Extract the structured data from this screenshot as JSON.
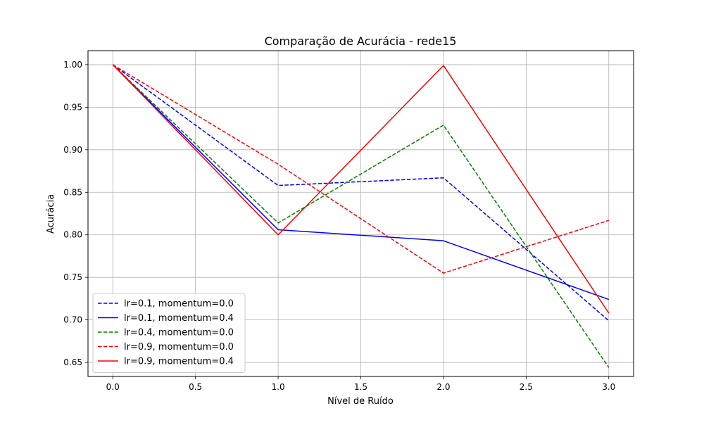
{
  "chart_data": {
    "type": "line",
    "title": "Comparação de Acurácia - rede15",
    "xlabel": "Nível de Ruído",
    "ylabel": "Acurácia",
    "xlim": [
      -0.15,
      3.15
    ],
    "ylim": [
      0.6335,
      1.0165
    ],
    "xticks": [
      "0.0",
      "0.5",
      "1.0",
      "1.5",
      "2.0",
      "2.5",
      "3.0"
    ],
    "yticks": [
      "0.65",
      "0.70",
      "0.75",
      "0.80",
      "0.85",
      "0.90",
      "0.95",
      "1.00"
    ],
    "grid": true,
    "legend_position": "lower-left",
    "x": [
      0.0,
      1.0,
      2.0,
      3.0
    ],
    "series": [
      {
        "name": "lr=0.1, momentum=0.0",
        "values": [
          1.0,
          0.858,
          0.867,
          0.699
        ],
        "color": "#0000ff",
        "style": "dashed"
      },
      {
        "name": "lr=0.1, momentum=0.4",
        "values": [
          1.0,
          0.806,
          0.793,
          0.724
        ],
        "color": "#0000ff",
        "style": "solid"
      },
      {
        "name": "lr=0.4, momentum=0.0",
        "values": [
          1.0,
          0.814,
          0.929,
          0.644
        ],
        "color": "#008000",
        "style": "dashed"
      },
      {
        "name": "lr=0.9, momentum=0.0",
        "values": [
          1.0,
          0.883,
          0.755,
          0.817
        ],
        "color": "#ff0000",
        "style": "dashed"
      },
      {
        "name": "lr=0.9, momentum=0.4",
        "values": [
          1.0,
          0.8,
          0.999,
          0.708
        ],
        "color": "#ff0000",
        "style": "solid"
      }
    ]
  }
}
